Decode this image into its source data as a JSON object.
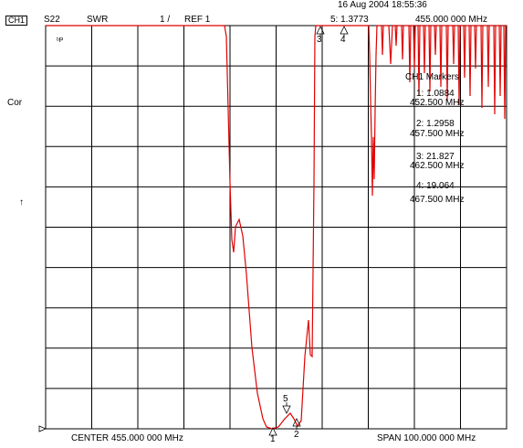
{
  "header": {
    "datetime": "16 Aug 2004  18:55:36",
    "channel": "CH1",
    "param": "S22",
    "format": "SWR",
    "scale": "1 /",
    "ref": "REF 1",
    "active_marker": "5: 1.3773",
    "active_freq": "455.000 000 MHz"
  },
  "left": {
    "small_marker": "ᵇP",
    "cor": "Cor",
    "arrow": "↑"
  },
  "footer": {
    "center": "CENTER 455.000 000 MHz",
    "span": "SPAN 100.000 000 MHz"
  },
  "markers_panel": {
    "title": "CH1 Markers",
    "items": [
      {
        "label": "1: 1.0884",
        "freq": "452.500 MHz"
      },
      {
        "label": "2: 1.2958",
        "freq": "457.500 MHz"
      },
      {
        "label": "3: 21.827",
        "freq": "462.500 MHz"
      },
      {
        "label": "4: 19.064",
        "freq": "467.500 MHz"
      }
    ]
  },
  "marker_tags": [
    "1",
    "2",
    "3",
    "4",
    "5"
  ],
  "colors": {
    "trace": "#e00000",
    "grid": "#000000"
  }
}
